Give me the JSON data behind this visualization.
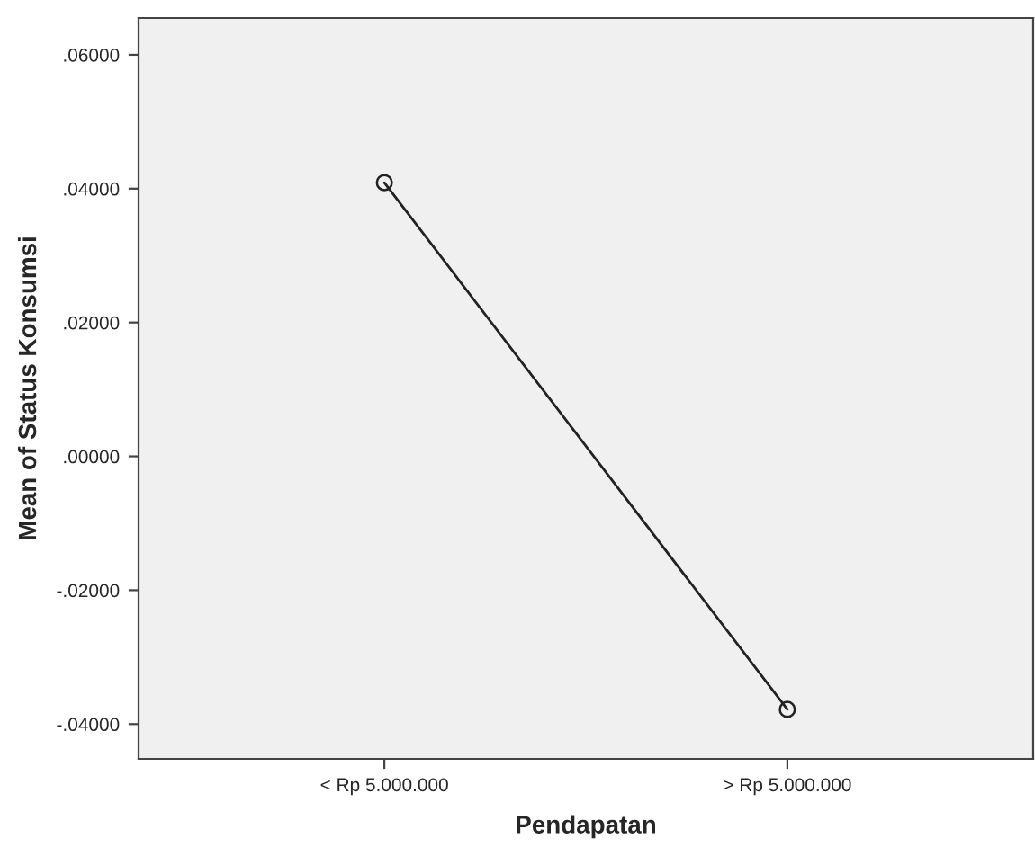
{
  "chart_data": {
    "type": "line",
    "xlabel": "Pendapatan",
    "ylabel": "Mean of Status Konsumsi",
    "categories": [
      "< Rp 5.000.000",
      "> Rp 5.000.000"
    ],
    "series": [
      {
        "color": "#222222",
        "values": [
          0.0409,
          -0.0378
        ]
      }
    ],
    "marker": "circle",
    "line_style": "solid",
    "ylim": [
      -0.0452,
      0.0655
    ],
    "yticks": [
      {
        "value": 0.06,
        "label": ".06000"
      },
      {
        "value": 0.04,
        "label": ".04000"
      },
      {
        "value": 0.02,
        "label": ".02000"
      },
      {
        "value": 0.0,
        "label": ".00000"
      },
      {
        "value": -0.02,
        "label": "-.02000"
      },
      {
        "value": -0.04,
        "label": "-.04000"
      }
    ],
    "grid": false
  }
}
